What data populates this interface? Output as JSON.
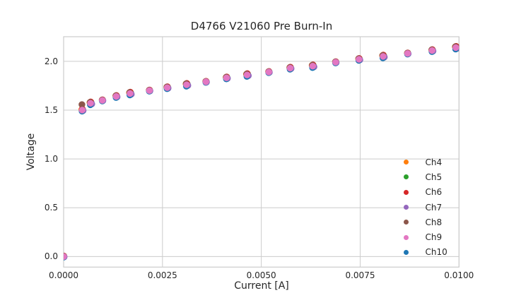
{
  "chart_data": {
    "type": "scatter",
    "title": "D4766 V21060 Pre Burn-In",
    "xlabel": "Current [A]",
    "ylabel": "Voltage",
    "xlim": [
      0,
      0.01
    ],
    "ylim": [
      -0.108,
      2.252
    ],
    "grid": true,
    "legend_position": "lower-right",
    "x_tick_values": [
      0,
      0.0025,
      0.005,
      0.0075,
      0.01
    ],
    "x_tick_labels": [
      "0.0000",
      "0.0025",
      "0.0050",
      "0.0075",
      "0.0100"
    ],
    "y_tick_values": [
      0,
      0.5,
      1.0,
      1.5,
      2.0
    ],
    "y_tick_labels": [
      "0.0",
      "0.5",
      "1.0",
      "1.5",
      "2.0"
    ],
    "x": [
      0.0,
      0.00047,
      0.00068,
      0.00098,
      0.00133,
      0.00168,
      0.00217,
      0.00262,
      0.00311,
      0.0036,
      0.00412,
      0.00464,
      0.00519,
      0.00573,
      0.0063,
      0.00688,
      0.00747,
      0.00808,
      0.0087,
      0.00932,
      0.00992
    ],
    "base_y": [
      0.0,
      1.5,
      1.57,
      1.6,
      1.64,
      1.67,
      1.7,
      1.73,
      1.76,
      1.79,
      1.83,
      1.86,
      1.89,
      1.93,
      1.95,
      1.99,
      2.02,
      2.05,
      2.08,
      2.11,
      2.14
    ],
    "series": [
      {
        "name": "Ch4",
        "color": "#ff7f0e"
      },
      {
        "name": "Ch5",
        "color": "#2ca02c"
      },
      {
        "name": "Ch6",
        "color": "#d62728"
      },
      {
        "name": "Ch7",
        "color": "#9467bd"
      },
      {
        "name": "Ch8",
        "color": "#8c564b",
        "y_overrides": {
          "1": 1.55
        }
      },
      {
        "name": "Ch9",
        "color": "#e377c2"
      },
      {
        "name": "Ch10",
        "color": "#1f77b4"
      }
    ],
    "colors": {
      "grid": "#cccccc",
      "frame": "#cccccc",
      "text": "#262626",
      "background": "#ffffff"
    }
  }
}
